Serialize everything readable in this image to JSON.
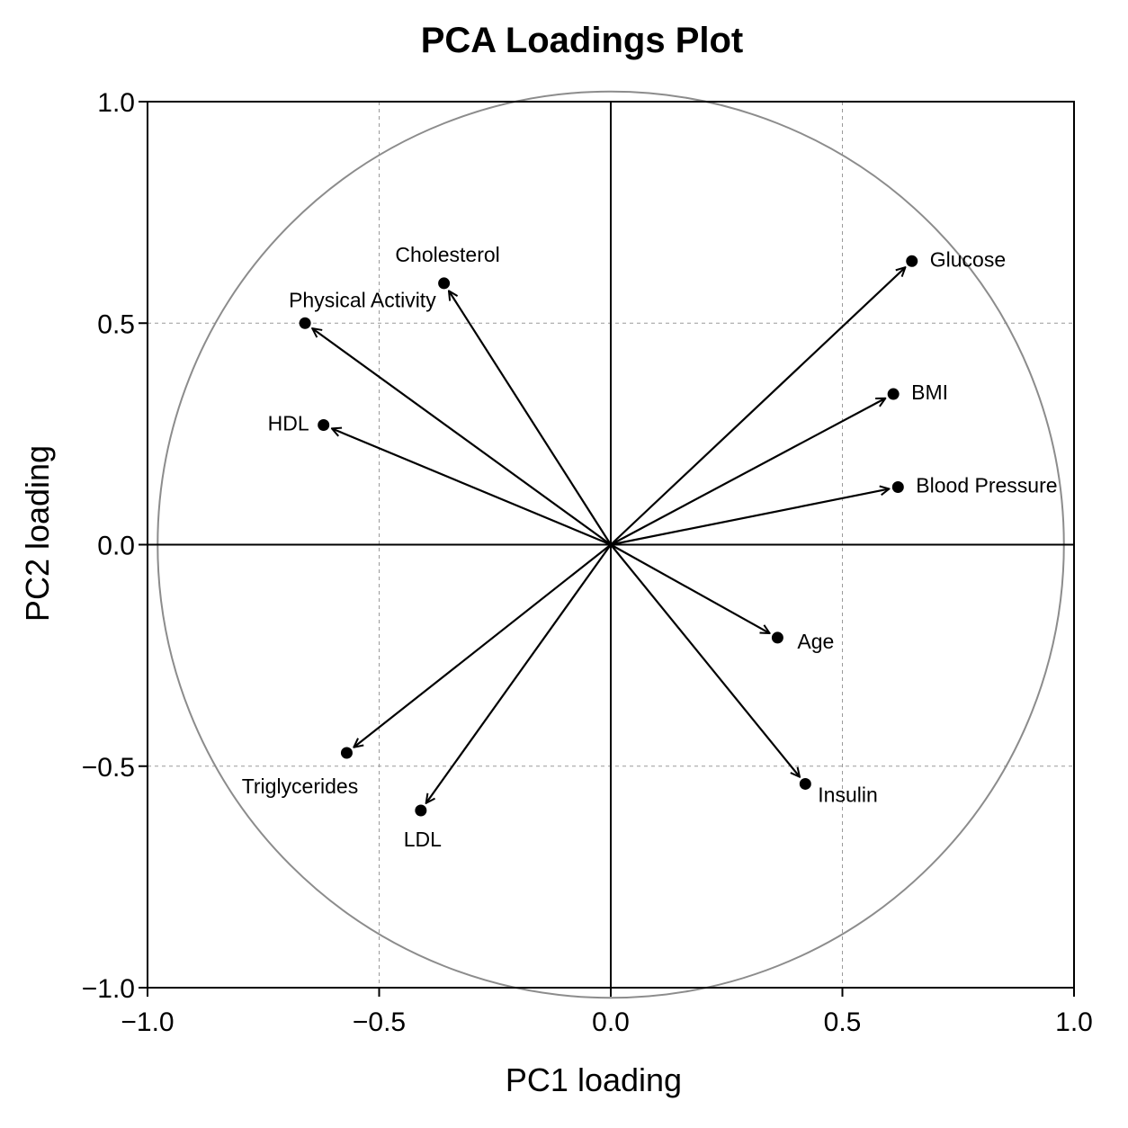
{
  "chart_data": {
    "type": "scatter",
    "title": "PCA Loadings Plot",
    "xlabel": "PC1 loading",
    "ylabel": "PC2 loading",
    "xlim": [
      -1.0,
      1.0
    ],
    "ylim": [
      -1.0,
      1.0
    ],
    "xticks": [
      -1.0,
      -0.5,
      0.0,
      0.5,
      1.0
    ],
    "yticks": [
      -1.0,
      -0.5,
      0.0,
      0.5,
      1.0
    ],
    "xtick_labels": [
      "−1.0",
      "−0.5",
      "0.0",
      "0.5",
      "1.0"
    ],
    "ytick_labels": [
      "−1.0",
      "−0.5",
      "0.0",
      "0.5",
      "1.0"
    ],
    "grid": true,
    "reference_circle_radius": 1.0,
    "points": [
      {
        "label": "Glucose",
        "x": 0.65,
        "y": 0.64
      },
      {
        "label": "BMI",
        "x": 0.61,
        "y": 0.34
      },
      {
        "label": "Blood Pressure",
        "x": 0.62,
        "y": 0.13
      },
      {
        "label": "Age",
        "x": 0.36,
        "y": -0.21
      },
      {
        "label": "Insulin",
        "x": 0.42,
        "y": -0.54
      },
      {
        "label": "LDL",
        "x": -0.41,
        "y": -0.6
      },
      {
        "label": "Triglycerides",
        "x": -0.57,
        "y": -0.47
      },
      {
        "label": "HDL",
        "x": -0.62,
        "y": 0.27
      },
      {
        "label": "Physical Activity",
        "x": -0.66,
        "y": 0.5
      },
      {
        "label": "Cholesterol",
        "x": -0.36,
        "y": 0.59
      }
    ],
    "colors": {
      "arrow": "#000000",
      "circle": "#8c8c8c",
      "grid": "#9a9a9a"
    }
  }
}
